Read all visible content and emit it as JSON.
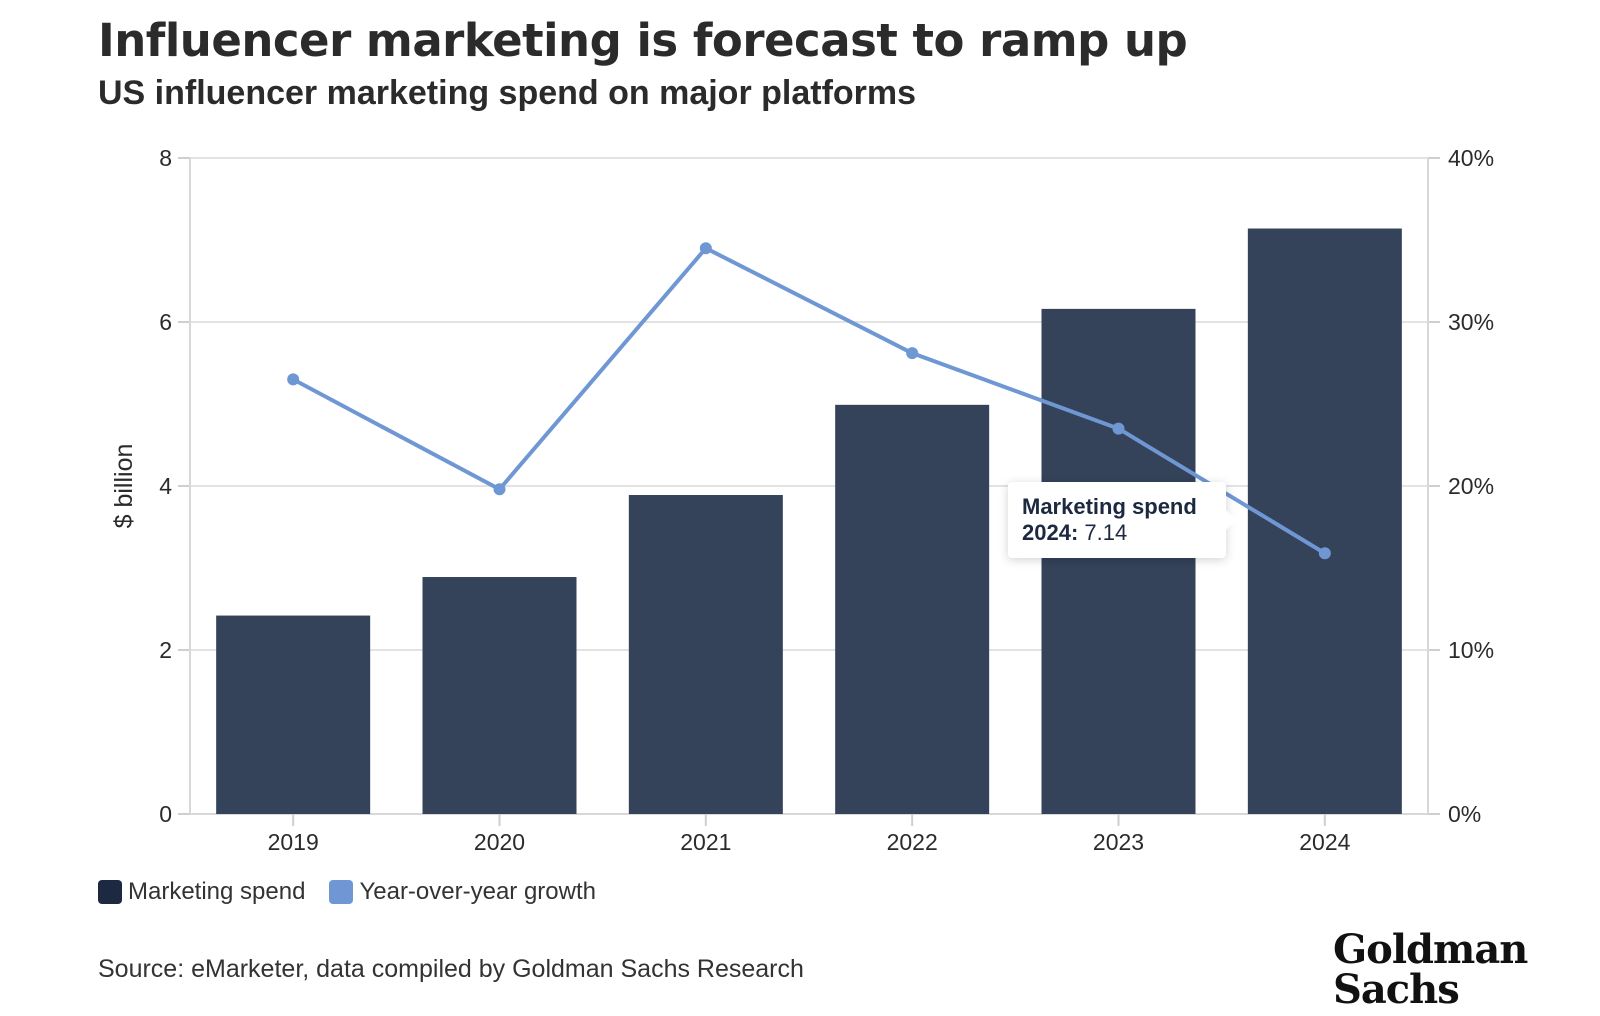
{
  "header": {
    "title": "Influencer marketing is forecast to ramp up",
    "subtitle": "US influencer marketing spend on major platforms"
  },
  "chart_data": {
    "type": "bar",
    "categories": [
      "2019",
      "2020",
      "2021",
      "2022",
      "2023",
      "2024"
    ],
    "series": [
      {
        "name": "Marketing spend",
        "type": "bar",
        "axis": "left",
        "color": "#34435a",
        "values": [
          2.42,
          2.89,
          3.89,
          4.99,
          6.16,
          7.14
        ]
      },
      {
        "name": "Year-over-year growth",
        "type": "line",
        "axis": "right",
        "color": "#6f97d4",
        "values": [
          26.5,
          19.8,
          34.5,
          28.1,
          23.5,
          15.9
        ]
      }
    ],
    "ylabel": "$ billion",
    "ylim": [
      0,
      8
    ],
    "yticks": [
      "0",
      "2",
      "4",
      "6",
      "8"
    ],
    "y2lim": [
      0,
      40
    ],
    "y2ticks": [
      "0%",
      "10%",
      "20%",
      "30%",
      "40%"
    ],
    "grid": true,
    "legend_position": "bottom-left",
    "tooltip": {
      "series": "Marketing spend",
      "year": "2024:",
      "value": "7.14"
    }
  },
  "legend": {
    "spend_label": "Marketing spend",
    "growth_label": "Year-over-year growth",
    "spend_color": "#1c2940",
    "growth_color": "#6f97d4"
  },
  "footer": {
    "source": "Source: eMarketer, data compiled by Goldman Sachs Research",
    "logo_line1": "Goldman",
    "logo_line2": "Sachs"
  }
}
